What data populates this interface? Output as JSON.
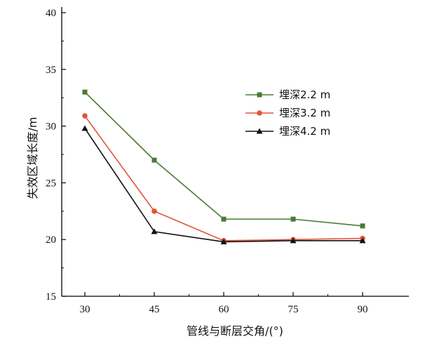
{
  "chart_data": {
    "type": "line",
    "x": [
      30,
      45,
      60,
      75,
      90
    ],
    "xlabel": "管线与断层交角/(°)",
    "ylabel": "失效区域长度/m",
    "xticks": [
      "30",
      "45",
      "60",
      "75",
      "90"
    ],
    "yticks": [
      "15",
      "20",
      "25",
      "30",
      "35",
      "40"
    ],
    "xlim": [
      25,
      100
    ],
    "ylim": [
      15,
      40.5
    ],
    "grid": false,
    "legend_position": "top-right",
    "series": [
      {
        "name": "埋深2.2 m",
        "values": [
          33.0,
          27.0,
          21.8,
          21.8,
          21.2
        ],
        "color": "#4a7a33",
        "marker": "square"
      },
      {
        "name": "埋深3.2 m",
        "values": [
          30.9,
          22.5,
          19.9,
          20.0,
          20.1
        ],
        "color": "#e0553a",
        "marker": "circle"
      },
      {
        "name": "埋深4.2 m",
        "values": [
          29.8,
          20.7,
          19.8,
          19.9,
          19.9
        ],
        "color": "#111111",
        "marker": "triangle"
      }
    ]
  }
}
